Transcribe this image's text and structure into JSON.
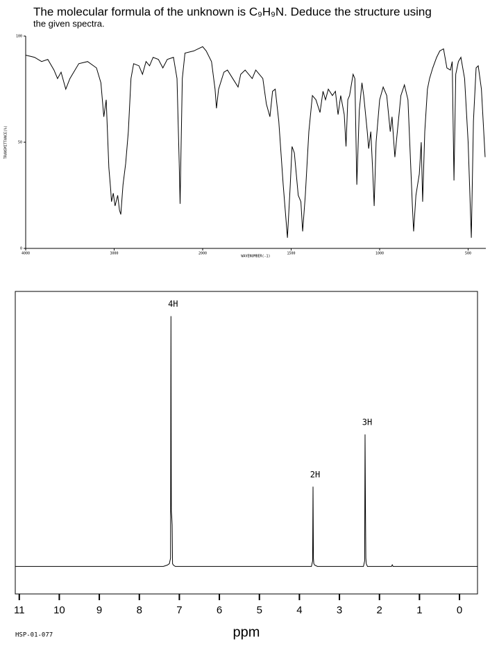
{
  "header": {
    "line1": "The molecular formula of the unknown is C₉H₉N.  Deduce the structure using",
    "line2": "the given spectra."
  },
  "footer_code": "HSP-01-077",
  "chart_data": [
    {
      "type": "line",
      "xlabel": "WAVENUMBER(-1)",
      "ylabel": "TRANSMITTANCE(%)",
      "color": "#000000",
      "x": [
        4000,
        3900,
        3820,
        3750,
        3680,
        3640,
        3600,
        3547,
        3500,
        3400,
        3300,
        3200,
        3150,
        3117,
        3090,
        3060,
        3040,
        3030,
        3010,
        2990,
        2960,
        2940,
        2925,
        2900,
        2870,
        2840,
        2810,
        2780,
        2720,
        2680,
        2640,
        2600,
        2560,
        2500,
        2450,
        2400,
        2330,
        2290,
        2265,
        2255,
        2245,
        2230,
        2200,
        2100,
        2050,
        2000,
        1980,
        1950,
        1930,
        1922,
        1910,
        1880,
        1860,
        1830,
        1800,
        1785,
        1760,
        1720,
        1700,
        1660,
        1640,
        1620,
        1605,
        1590,
        1570,
        1545,
        1521,
        1505,
        1495,
        1482,
        1460,
        1445,
        1435,
        1420,
        1400,
        1380,
        1360,
        1337,
        1320,
        1306,
        1290,
        1267,
        1250,
        1235,
        1220,
        1200,
        1190,
        1180,
        1170,
        1150,
        1140,
        1129,
        1115,
        1100,
        1090,
        1070,
        1062,
        1050,
        1040,
        1031,
        1020,
        1000,
        980,
        960,
        940,
        930,
        914,
        900,
        880,
        860,
        840,
        825,
        815,
        808,
        795,
        776,
        765,
        757,
        745,
        730,
        718,
        700,
        678,
        660,
        639,
        620,
        600,
        590,
        580,
        570,
        555,
        541,
        520,
        500,
        482,
        470,
        455,
        443,
        425,
        404
      ],
      "values": [
        91,
        90,
        88,
        89,
        84,
        80,
        83,
        75,
        80,
        87,
        88,
        85,
        78,
        62,
        70,
        38,
        28,
        22,
        26,
        20,
        25,
        18,
        16,
        30,
        40,
        55,
        80,
        87,
        86,
        82,
        88,
        86,
        90,
        89,
        85,
        89,
        90,
        80,
        40,
        21,
        45,
        80,
        92,
        93,
        94,
        95,
        93,
        88,
        75,
        66,
        75,
        83,
        84,
        80,
        76,
        82,
        84,
        80,
        84,
        80,
        68,
        62,
        74,
        75,
        60,
        30,
        5,
        30,
        48,
        45,
        25,
        22,
        8,
        25,
        55,
        72,
        70,
        64,
        74,
        70,
        75,
        72,
        74,
        63,
        72,
        63,
        48,
        70,
        72,
        82,
        80,
        30,
        65,
        78,
        72,
        55,
        47,
        55,
        38,
        20,
        50,
        70,
        76,
        72,
        55,
        62,
        43,
        55,
        72,
        77,
        70,
        40,
        20,
        8,
        25,
        35,
        50,
        22,
        55,
        75,
        80,
        85,
        90,
        93,
        94,
        85,
        84,
        88,
        32,
        82,
        88,
        90,
        80,
        50,
        5,
        60,
        85,
        86,
        75,
        43
      ],
      "xlim": [
        4000,
        400
      ],
      "xticks": [
        4000,
        3000,
        2000,
        1500,
        1000,
        500
      ],
      "ylim": [
        0,
        100
      ],
      "yticks": [
        0,
        50,
        100
      ]
    },
    {
      "type": "line",
      "xlabel": "ppm",
      "color": "#000000",
      "x": [
        11.1,
        7.4,
        7.3,
        7.25,
        7.22,
        7.21,
        7.2,
        7.19,
        7.18,
        7.17,
        7.15,
        7.1,
        7.0,
        3.7,
        3.67,
        3.66,
        3.65,
        3.64,
        3.62,
        3.55,
        2.4,
        2.37,
        2.36,
        2.35,
        2.34,
        2.33,
        2.3,
        1.7,
        1.68,
        1.66,
        -0.45
      ],
      "values": [
        0,
        0,
        0.5,
        1,
        3,
        91,
        20,
        18,
        15,
        1,
        0.5,
        0,
        0,
        0,
        2,
        29,
        3,
        1,
        0.5,
        0,
        0,
        2,
        48,
        22,
        3,
        1,
        0,
        0,
        0.6,
        0,
        0
      ],
      "xlim": [
        11.1,
        -0.45
      ],
      "xticks": [
        11,
        10,
        9,
        8,
        7,
        6,
        5,
        4,
        3,
        2,
        1,
        0
      ],
      "ylim": [
        -10,
        100
      ],
      "annotations": [
        {
          "text": "4H",
          "x": 7.21,
          "y": 91
        },
        {
          "text": "2H",
          "x": 3.66,
          "y": 29
        },
        {
          "text": "3H",
          "x": 2.36,
          "y": 48
        }
      ]
    }
  ]
}
